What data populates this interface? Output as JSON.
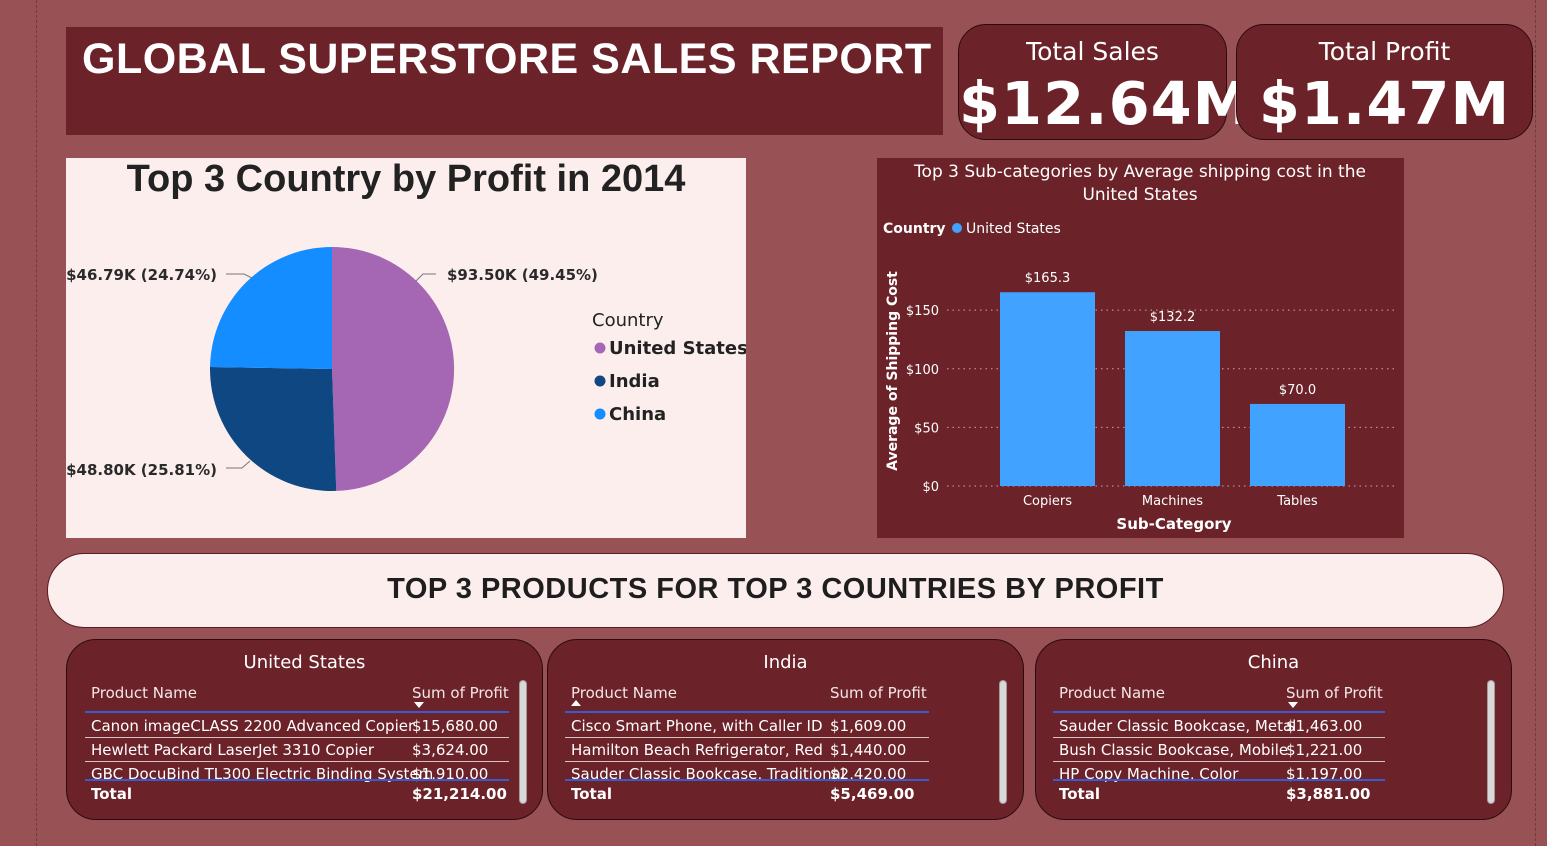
{
  "report": {
    "title": "GLOBAL SUPERSTORE SALES REPORT"
  },
  "kpis": {
    "sales_label": "Total Sales",
    "sales_value": "$12.64M",
    "profit_label": "Total Profit",
    "profit_value": "$1.47M"
  },
  "banner": {
    "text": "TOP 3 PRODUCTS FOR TOP 3 COUNTRIES BY PROFIT"
  },
  "colors": {
    "background": "#985155",
    "panel_dark": "#6b2329",
    "panel_light": "#fdeeee",
    "bar": "#42a2ff",
    "us": "#a566b4",
    "india": "#0e4781",
    "china": "#138dff"
  },
  "chart_data": [
    {
      "type": "pie",
      "title": "Top 3 Country by Profit in 2014",
      "legend_title": "Country",
      "legend_position": "right",
      "categories": [
        "United States",
        "India",
        "China"
      ],
      "values": [
        93500,
        48800,
        46790
      ],
      "percent": [
        49.45,
        25.81,
        24.74
      ],
      "data_labels": [
        "$93.50K (49.45%)",
        "$48.80K (25.81%)",
        "$46.79K (24.74%)"
      ],
      "colors": [
        "#a566b4",
        "#0e4781",
        "#138dff"
      ]
    },
    {
      "type": "bar",
      "title": "Top 3 Sub-categories by Average shipping cost in the United States",
      "legend_title": "Country",
      "legend_position": "top-left",
      "series": [
        {
          "name": "United States",
          "values": [
            165.3,
            132.2,
            70.0
          ]
        }
      ],
      "categories": [
        "Copiers",
        "Machines",
        "Tables"
      ],
      "data_labels": [
        "$165.3",
        "$132.2",
        "$70.0"
      ],
      "xlabel": "Sub-Category",
      "ylabel": "Average of Shipping Cost",
      "ylim": [
        0,
        180
      ],
      "yticks": [
        0,
        50,
        100,
        150
      ],
      "ytick_labels": [
        "$0",
        "$50",
        "$100",
        "$150"
      ],
      "grid": true
    },
    {
      "type": "table",
      "title": "United States",
      "columns": [
        "Product Name",
        "Sum of Profit"
      ],
      "sort_column": "Sum of Profit",
      "sort_direction": "descending",
      "rows": [
        [
          "Canon imageCLASS 2200 Advanced Copier",
          "$15,680.00"
        ],
        [
          "Hewlett Packard LaserJet 3310 Copier",
          "$3,624.00"
        ],
        [
          "GBC DocuBind TL300 Electric Binding System",
          "$1,910.00"
        ]
      ],
      "total_label": "Total",
      "total": "$21,214.00"
    },
    {
      "type": "table",
      "title": "India",
      "columns": [
        "Product Name",
        "Sum of Profit"
      ],
      "rows": [
        [
          "Cisco Smart Phone, with Caller ID",
          "$1,609.00"
        ],
        [
          "Hamilton Beach Refrigerator, Red",
          "$1,440.00"
        ],
        [
          "Sauder Classic Bookcase, Traditional",
          "$2,420.00"
        ]
      ],
      "total_label": "Total",
      "total": "$5,469.00"
    },
    {
      "type": "table",
      "title": "China",
      "columns": [
        "Product Name",
        "Sum of Profit"
      ],
      "sort_column": "Sum of Profit",
      "sort_direction": "descending",
      "rows": [
        [
          "Sauder Classic Bookcase, Metal",
          "$1,463.00"
        ],
        [
          "Bush Classic Bookcase, Mobile",
          "$1,221.00"
        ],
        [
          "HP Copy Machine, Color",
          "$1,197.00"
        ]
      ],
      "total_label": "Total",
      "total": "$3,881.00"
    }
  ]
}
